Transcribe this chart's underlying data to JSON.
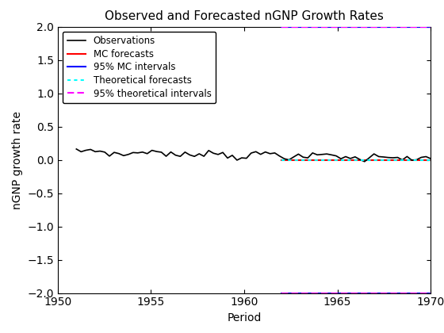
{
  "title": "Observed and Forecasted nGNP Growth Rates",
  "xlabel": "Period",
  "ylabel": "nGNP growth rate",
  "xlim": [
    1950,
    1970
  ],
  "ylim": [
    -2,
    2
  ],
  "obs_x_start": 1951.0,
  "obs_x_end": 1970.0,
  "forecast_x_start": 1962.0,
  "forecast_x_end": 1970.0,
  "obs_color": "#000000",
  "mc_forecast_color": "#ff0000",
  "mc_interval_color": "#0000ff",
  "theoretical_forecast_color": "#00ffff",
  "theoretical_interval_color": "#ff00ff",
  "legend_labels": [
    "Observations",
    "MC forecasts",
    "95% MC intervals",
    "Theoretical forecasts",
    "95% theoretical intervals"
  ],
  "xticks": [
    1950,
    1955,
    1960,
    1965,
    1970
  ],
  "yticks": [
    -2,
    -1.5,
    -1,
    -0.5,
    0,
    0.5,
    1,
    1.5,
    2
  ],
  "title_fontsize": 11,
  "axis_label_fontsize": 10,
  "tick_fontsize": 10,
  "legend_fontsize": 8.5,
  "obs_linewidth": 1.2,
  "forecast_linewidth": 1.5,
  "interval_linewidth": 1.5
}
